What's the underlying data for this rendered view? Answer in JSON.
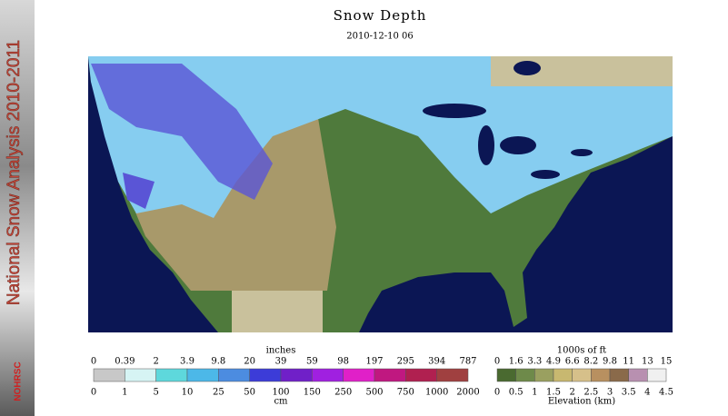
{
  "header": {
    "title": "Snow Depth",
    "date": "2010-12-10 06"
  },
  "side": {
    "title": "National Snow Analysis 2010-2011",
    "logo": "NOHRSC"
  },
  "snow_legend": {
    "title": "inches",
    "inches": [
      "0",
      "0.39",
      "2",
      "3.9",
      "9.8",
      "20",
      "39",
      "59",
      "98",
      "197",
      "295",
      "394",
      "787"
    ],
    "cm": [
      "0",
      "1",
      "5",
      "10",
      "25",
      "50",
      "100",
      "150",
      "250",
      "500",
      "750",
      "1000",
      "2000"
    ],
    "cm_title": "cm"
  },
  "elevation_legend": {
    "title": "1000s of ft",
    "ft": [
      "0",
      "1.6",
      "3.3",
      "4.9",
      "6.6",
      "8.2",
      "9.8",
      "11",
      "13",
      "15"
    ],
    "km": [
      "0",
      "0.5",
      "1",
      "1.5",
      "2",
      "2.5",
      "3",
      "3.5",
      "4",
      "4.5"
    ],
    "km_title": "Elevation (km)"
  }
}
